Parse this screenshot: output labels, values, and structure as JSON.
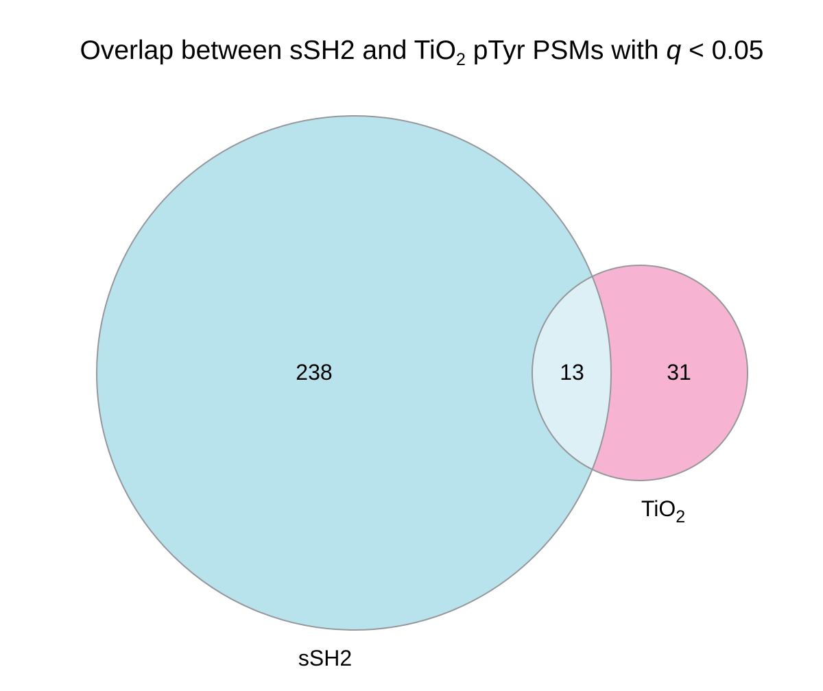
{
  "title": {
    "before": "Overlap between sSH2 and TiO",
    "subscript": "2",
    "middle": " pTyr PSMs with ",
    "italic": "q",
    "after": " < 0.05"
  },
  "sets": [
    {
      "name": "sSH2",
      "color": "#b9e3ec"
    },
    {
      "name": "TiO",
      "name_subscript": "2",
      "color": "#f6b4d2"
    }
  ],
  "regions": {
    "sSH2_only": "238",
    "overlap": "13",
    "TiO2_only": "31"
  },
  "colors": {
    "overlap": "#dcf0f6",
    "outline": "#96979b"
  }
}
